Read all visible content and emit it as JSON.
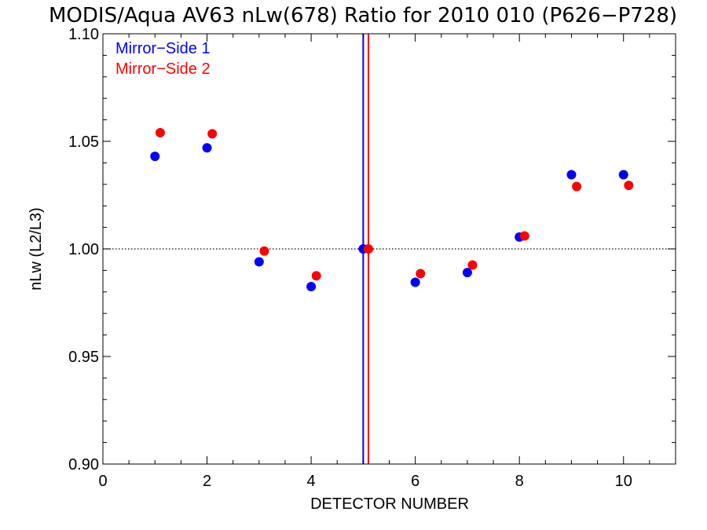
{
  "chart_data": {
    "type": "scatter",
    "title": "MODIS/Aqua AV63 nLw(678) Ratio for 2010 010 (P626−P728)",
    "xlabel": "DETECTOR NUMBER",
    "ylabel": "nLw (L2/L3)",
    "xlim": [
      0,
      11
    ],
    "ylim": [
      0.9,
      1.1
    ],
    "x_ticks": [
      0,
      2,
      4,
      6,
      8,
      10
    ],
    "x_tick_labels": [
      "0",
      "2",
      "4",
      "6",
      "8",
      "10"
    ],
    "y_ticks": [
      0.9,
      0.95,
      1.0,
      1.05,
      1.1
    ],
    "y_tick_labels": [
      "0.90",
      "0.95",
      "1.00",
      "1.05",
      "1.10"
    ],
    "reference_line_y": 1.0,
    "legend_position": "top-left",
    "series": [
      {
        "name": "Mirror−Side 1",
        "color": "#0000ff",
        "x": [
          1,
          2,
          3,
          4,
          5,
          6,
          7,
          8,
          9,
          10
        ],
        "y": [
          1.043,
          1.047,
          0.994,
          0.9825,
          1.0,
          0.9845,
          0.989,
          1.0055,
          1.0345,
          1.0345
        ],
        "vertical_line_x": 5.0
      },
      {
        "name": "Mirror−Side 2",
        "color": "#ff0000",
        "x": [
          1.1,
          2.1,
          3.1,
          4.1,
          5.1,
          6.1,
          7.1,
          8.1,
          9.1,
          10.1
        ],
        "y": [
          1.054,
          1.0535,
          0.999,
          0.9875,
          1.0,
          0.9885,
          0.9925,
          1.006,
          1.029,
          1.0295
        ],
        "vertical_line_x": 5.1
      }
    ]
  }
}
